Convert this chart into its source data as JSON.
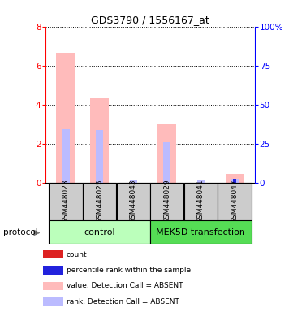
{
  "title": "GDS3790 / 1556167_at",
  "samples": [
    "GSM448023",
    "GSM448025",
    "GSM448043",
    "GSM448029",
    "GSM448041",
    "GSM448047"
  ],
  "value_absent": [
    6.65,
    4.35,
    0.0,
    2.98,
    0.0,
    0.45
  ],
  "rank_absent_pct": [
    34.375,
    33.75,
    1.25,
    25.625,
    1.25,
    2.25
  ],
  "count_value": [
    0.1,
    0.0,
    0.0,
    0.0,
    0.0,
    0.12
  ],
  "rank_present_pct": [
    0,
    0,
    0,
    0,
    0,
    0
  ],
  "ylim_left": [
    0,
    8
  ],
  "ylim_right": [
    0,
    100
  ],
  "yticks_left": [
    0,
    2,
    4,
    6,
    8
  ],
  "yticks_right": [
    0,
    25,
    50,
    75,
    100
  ],
  "yticklabels_right": [
    "0",
    "25",
    "50",
    "75",
    "100%"
  ],
  "color_value_absent": "#ffbbbb",
  "color_rank_absent": "#bbbbff",
  "color_count": "#dd2222",
  "color_rank_present": "#2222dd",
  "sample_box_color": "#cccccc",
  "group_control_color": "#bbffbb",
  "group_mek_color": "#55dd55",
  "legend_items": [
    {
      "label": "count",
      "color": "#dd2222"
    },
    {
      "label": "percentile rank within the sample",
      "color": "#2222dd"
    },
    {
      "label": "value, Detection Call = ABSENT",
      "color": "#ffbbbb"
    },
    {
      "label": "rank, Detection Call = ABSENT",
      "color": "#bbbbff"
    }
  ],
  "protocol_label": "protocol"
}
